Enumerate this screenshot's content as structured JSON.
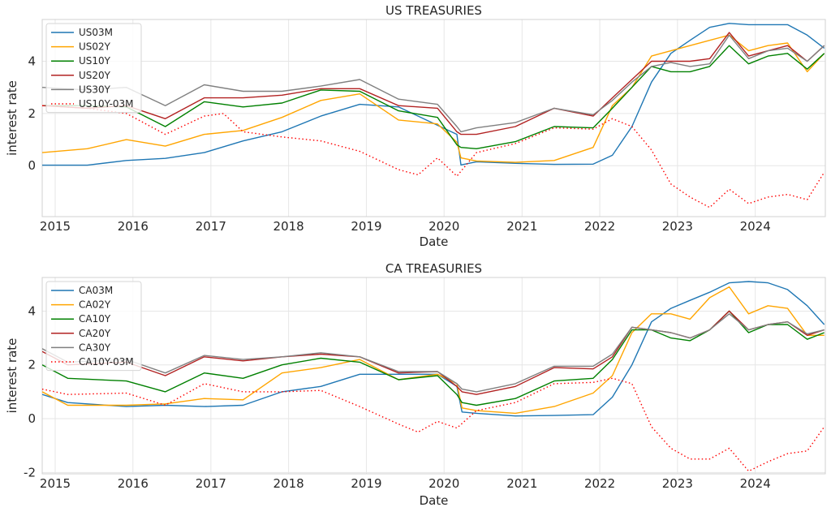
{
  "chart_data": [
    {
      "type": "line",
      "title": "US TREASURIES",
      "xlabel": "Date",
      "ylabel": "interest rate",
      "xlim": [
        "2014-11-01",
        "2024-11-25"
      ],
      "ylim": [
        -1.95,
        5.6
      ],
      "x_ticks": [
        "2015",
        "2016",
        "2017",
        "2018",
        "2019",
        "2020",
        "2021",
        "2022",
        "2023",
        "2024"
      ],
      "y_ticks": [
        0,
        2,
        4
      ],
      "grid": true,
      "legend_position": "top-left",
      "series": [
        {
          "name": "US03M",
          "color": "#1f77b4",
          "style": "solid",
          "x": [
            "2014-11-01",
            "2015-06-01",
            "2015-12-01",
            "2016-06-01",
            "2016-12-01",
            "2017-06-01",
            "2017-12-01",
            "2018-06-01",
            "2018-12-01",
            "2019-06-01",
            "2019-12-01",
            "2020-03-01",
            "2020-03-20",
            "2020-06-01",
            "2020-12-01",
            "2021-06-01",
            "2021-12-01",
            "2022-03-01",
            "2022-06-01",
            "2022-09-01",
            "2022-12-01",
            "2023-03-01",
            "2023-06-01",
            "2023-09-01",
            "2023-12-01",
            "2024-03-01",
            "2024-06-01",
            "2024-09-01",
            "2024-11-20"
          ],
          "y": [
            0.02,
            0.02,
            0.2,
            0.28,
            0.5,
            0.95,
            1.3,
            1.9,
            2.35,
            2.25,
            1.55,
            1.2,
            0.03,
            0.15,
            0.09,
            0.05,
            0.06,
            0.4,
            1.5,
            3.2,
            4.3,
            4.8,
            5.3,
            5.45,
            5.4,
            5.4,
            5.4,
            5.0,
            4.5
          ]
        },
        {
          "name": "US02Y",
          "color": "#ffa500",
          "style": "solid",
          "x": [
            "2014-11-01",
            "2015-06-01",
            "2015-12-01",
            "2016-06-01",
            "2016-12-01",
            "2017-06-01",
            "2017-12-01",
            "2018-06-01",
            "2018-12-01",
            "2019-06-01",
            "2019-12-01",
            "2020-03-01",
            "2020-03-20",
            "2020-06-01",
            "2020-12-01",
            "2021-06-01",
            "2021-12-01",
            "2022-03-01",
            "2022-06-01",
            "2022-09-01",
            "2022-12-01",
            "2023-03-01",
            "2023-06-01",
            "2023-09-01",
            "2023-12-01",
            "2024-03-01",
            "2024-06-01",
            "2024-09-01",
            "2024-11-20"
          ],
          "y": [
            0.5,
            0.65,
            1.0,
            0.75,
            1.2,
            1.35,
            1.85,
            2.5,
            2.75,
            1.75,
            1.6,
            0.9,
            0.3,
            0.18,
            0.13,
            0.2,
            0.7,
            2.3,
            3.0,
            4.2,
            4.4,
            4.6,
            4.8,
            5.0,
            4.4,
            4.6,
            4.7,
            3.6,
            4.3
          ]
        },
        {
          "name": "US10Y",
          "color": "#008000",
          "style": "solid",
          "x": [
            "2014-11-01",
            "2015-06-01",
            "2015-12-01",
            "2016-06-01",
            "2016-12-01",
            "2017-06-01",
            "2017-12-01",
            "2018-06-01",
            "2018-12-01",
            "2019-06-01",
            "2019-12-01",
            "2020-03-01",
            "2020-03-20",
            "2020-06-01",
            "2020-12-01",
            "2021-06-01",
            "2021-12-01",
            "2022-03-01",
            "2022-06-01",
            "2022-09-01",
            "2022-12-01",
            "2023-03-01",
            "2023-06-01",
            "2023-09-01",
            "2023-12-01",
            "2024-03-01",
            "2024-06-01",
            "2024-09-01",
            "2024-11-20"
          ],
          "y": [
            2.3,
            2.3,
            2.25,
            1.5,
            2.45,
            2.25,
            2.4,
            2.9,
            2.85,
            2.1,
            1.85,
            0.8,
            0.7,
            0.65,
            0.92,
            1.5,
            1.45,
            2.2,
            3.0,
            3.8,
            3.6,
            3.6,
            3.8,
            4.6,
            3.9,
            4.2,
            4.3,
            3.7,
            4.3
          ]
        },
        {
          "name": "US20Y",
          "color": "#b22222",
          "style": "solid",
          "x": [
            "2014-11-01",
            "2015-06-01",
            "2015-12-01",
            "2016-06-01",
            "2016-12-01",
            "2017-06-01",
            "2017-12-01",
            "2018-06-01",
            "2018-12-01",
            "2019-06-01",
            "2019-12-01",
            "2020-03-01",
            "2020-03-20",
            "2020-06-01",
            "2020-12-01",
            "2021-06-01",
            "2021-12-01",
            "2022-03-01",
            "2022-06-01",
            "2022-09-01",
            "2022-12-01",
            "2023-03-01",
            "2023-06-01",
            "2023-09-01",
            "2023-12-01",
            "2024-03-01",
            "2024-06-01",
            "2024-09-01",
            "2024-11-20"
          ],
          "y": [
            2.3,
            2.2,
            2.3,
            1.8,
            2.6,
            2.6,
            2.7,
            2.95,
            2.95,
            2.3,
            2.2,
            1.3,
            1.2,
            1.2,
            1.5,
            2.2,
            1.9,
            2.6,
            3.3,
            4.0,
            4.0,
            4.0,
            4.1,
            5.1,
            4.2,
            4.4,
            4.6,
            4.0,
            4.6
          ]
        },
        {
          "name": "US30Y",
          "color": "#808080",
          "style": "solid",
          "x": [
            "2014-11-01",
            "2015-06-01",
            "2015-12-01",
            "2016-06-01",
            "2016-12-01",
            "2017-06-01",
            "2017-12-01",
            "2018-06-01",
            "2018-12-01",
            "2019-06-01",
            "2019-12-01",
            "2020-03-01",
            "2020-03-20",
            "2020-06-01",
            "2020-12-01",
            "2021-06-01",
            "2021-12-01",
            "2022-03-01",
            "2022-06-01",
            "2022-09-01",
            "2022-12-01",
            "2023-03-01",
            "2023-06-01",
            "2023-09-01",
            "2023-12-01",
            "2024-03-01",
            "2024-06-01",
            "2024-09-01",
            "2024-11-20"
          ],
          "y": [
            3.0,
            2.9,
            3.0,
            2.3,
            3.1,
            2.85,
            2.85,
            3.05,
            3.3,
            2.55,
            2.35,
            1.5,
            1.3,
            1.45,
            1.65,
            2.2,
            1.95,
            2.5,
            3.2,
            3.8,
            3.95,
            3.8,
            3.9,
            5.0,
            4.1,
            4.4,
            4.5,
            4.0,
            4.6
          ]
        },
        {
          "name": "US10Y-03M",
          "color": "#ff0000",
          "style": "dotted",
          "x": [
            "2014-11-01",
            "2015-06-01",
            "2015-12-01",
            "2016-06-01",
            "2016-12-01",
            "2017-03-01",
            "2017-06-01",
            "2017-12-01",
            "2018-06-01",
            "2018-12-01",
            "2019-06-01",
            "2019-09-01",
            "2019-12-01",
            "2020-03-01",
            "2020-06-01",
            "2020-12-01",
            "2021-06-01",
            "2021-12-01",
            "2022-03-01",
            "2022-06-01",
            "2022-09-01",
            "2022-12-01",
            "2023-03-01",
            "2023-06-01",
            "2023-09-01",
            "2023-12-01",
            "2024-03-01",
            "2024-06-01",
            "2024-09-01",
            "2024-11-20"
          ],
          "y": [
            2.3,
            2.2,
            2.0,
            1.2,
            1.9,
            2.0,
            1.3,
            1.1,
            0.95,
            0.55,
            -0.15,
            -0.35,
            0.3,
            -0.4,
            0.5,
            0.85,
            1.45,
            1.4,
            1.8,
            1.5,
            0.6,
            -0.7,
            -1.2,
            -1.6,
            -0.9,
            -1.45,
            -1.2,
            -1.1,
            -1.3,
            -0.25
          ]
        }
      ]
    },
    {
      "type": "line",
      "title": "CA TREASURIES",
      "xlabel": "Date",
      "ylabel": "interest rate",
      "xlim": [
        "2014-11-01",
        "2024-11-25"
      ],
      "ylim": [
        -2.05,
        5.25
      ],
      "x_ticks": [
        "2015",
        "2016",
        "2017",
        "2018",
        "2019",
        "2020",
        "2021",
        "2022",
        "2023",
        "2024"
      ],
      "y_ticks": [
        -2,
        0,
        2,
        4
      ],
      "grid": true,
      "legend_position": "top-left",
      "series": [
        {
          "name": "CA03M",
          "color": "#1f77b4",
          "style": "solid",
          "x": [
            "2014-11-01",
            "2015-03-01",
            "2015-12-01",
            "2016-06-01",
            "2016-12-01",
            "2017-06-01",
            "2017-12-01",
            "2018-06-01",
            "2018-12-01",
            "2019-06-01",
            "2019-12-01",
            "2020-03-01",
            "2020-03-25",
            "2020-06-01",
            "2020-12-01",
            "2021-06-01",
            "2021-12-01",
            "2022-03-01",
            "2022-06-01",
            "2022-09-01",
            "2022-12-01",
            "2023-03-01",
            "2023-06-01",
            "2023-09-01",
            "2023-12-01",
            "2024-03-01",
            "2024-06-01",
            "2024-09-01",
            "2024-11-20"
          ],
          "y": [
            0.9,
            0.6,
            0.45,
            0.5,
            0.45,
            0.5,
            1.0,
            1.2,
            1.65,
            1.65,
            1.65,
            1.2,
            0.25,
            0.2,
            0.1,
            0.12,
            0.15,
            0.8,
            2.0,
            3.6,
            4.1,
            4.4,
            4.7,
            5.05,
            5.1,
            5.05,
            4.8,
            4.2,
            3.5
          ]
        },
        {
          "name": "CA02Y",
          "color": "#ffa500",
          "style": "solid",
          "x": [
            "2014-11-01",
            "2015-03-01",
            "2015-12-01",
            "2016-06-01",
            "2016-12-01",
            "2017-06-01",
            "2017-12-01",
            "2018-06-01",
            "2018-12-01",
            "2019-06-01",
            "2019-12-01",
            "2020-03-01",
            "2020-03-25",
            "2020-06-01",
            "2020-12-01",
            "2021-06-01",
            "2021-12-01",
            "2022-03-01",
            "2022-06-01",
            "2022-09-01",
            "2022-12-01",
            "2023-03-01",
            "2023-06-01",
            "2023-09-01",
            "2023-12-01",
            "2024-03-01",
            "2024-06-01",
            "2024-09-01",
            "2024-11-20"
          ],
          "y": [
            1.0,
            0.5,
            0.5,
            0.55,
            0.75,
            0.7,
            1.7,
            1.9,
            2.2,
            1.45,
            1.65,
            1.3,
            0.4,
            0.3,
            0.2,
            0.45,
            0.95,
            1.6,
            3.2,
            3.9,
            3.9,
            3.7,
            4.5,
            4.9,
            3.9,
            4.2,
            4.1,
            3.1,
            3.1
          ]
        },
        {
          "name": "CA10Y",
          "color": "#008000",
          "style": "solid",
          "x": [
            "2014-11-01",
            "2015-03-01",
            "2015-12-01",
            "2016-06-01",
            "2016-12-01",
            "2017-06-01",
            "2017-12-01",
            "2018-06-01",
            "2018-12-01",
            "2019-06-01",
            "2019-12-01",
            "2020-03-01",
            "2020-03-25",
            "2020-06-01",
            "2020-12-01",
            "2021-06-01",
            "2021-12-01",
            "2022-03-01",
            "2022-06-01",
            "2022-09-01",
            "2022-12-01",
            "2023-03-01",
            "2023-06-01",
            "2023-09-01",
            "2023-12-01",
            "2024-03-01",
            "2024-06-01",
            "2024-09-01",
            "2024-11-20"
          ],
          "y": [
            2.0,
            1.5,
            1.4,
            1.0,
            1.7,
            1.5,
            2.0,
            2.25,
            2.1,
            1.45,
            1.6,
            0.9,
            0.6,
            0.5,
            0.75,
            1.4,
            1.5,
            2.2,
            3.3,
            3.3,
            3.0,
            2.9,
            3.3,
            4.0,
            3.2,
            3.5,
            3.5,
            2.95,
            3.2
          ]
        },
        {
          "name": "CA20Y",
          "color": "#b22222",
          "style": "solid",
          "x": [
            "2014-11-01",
            "2015-03-01",
            "2015-12-01",
            "2016-06-01",
            "2016-12-01",
            "2017-06-01",
            "2017-12-01",
            "2018-06-01",
            "2018-12-01",
            "2019-06-01",
            "2019-12-01",
            "2020-03-01",
            "2020-03-25",
            "2020-06-01",
            "2020-12-01",
            "2021-06-01",
            "2021-12-01",
            "2022-03-01",
            "2022-06-01",
            "2022-09-01",
            "2022-12-01",
            "2023-03-01",
            "2023-06-01",
            "2023-09-01",
            "2023-12-01",
            "2024-03-01",
            "2024-06-01",
            "2024-09-01",
            "2024-11-20"
          ],
          "y": [
            2.5,
            2.0,
            2.1,
            1.6,
            2.3,
            2.15,
            2.3,
            2.4,
            2.3,
            1.7,
            1.75,
            1.2,
            1.0,
            0.9,
            1.2,
            1.9,
            1.85,
            2.3,
            3.4,
            3.3,
            3.2,
            3.0,
            3.3,
            4.0,
            3.3,
            3.5,
            3.6,
            3.1,
            3.3
          ]
        },
        {
          "name": "CA30Y",
          "color": "#808080",
          "style": "solid",
          "x": [
            "2014-11-01",
            "2015-03-01",
            "2015-12-01",
            "2016-06-01",
            "2016-12-01",
            "2017-06-01",
            "2017-12-01",
            "2018-06-01",
            "2018-12-01",
            "2019-06-01",
            "2019-12-01",
            "2020-03-01",
            "2020-03-25",
            "2020-06-01",
            "2020-12-01",
            "2021-06-01",
            "2021-12-01",
            "2022-03-01",
            "2022-06-01",
            "2022-09-01",
            "2022-12-01",
            "2023-03-01",
            "2023-06-01",
            "2023-09-01",
            "2023-12-01",
            "2024-03-01",
            "2024-06-01",
            "2024-09-01",
            "2024-11-20"
          ],
          "y": [
            2.6,
            2.1,
            2.2,
            1.7,
            2.35,
            2.2,
            2.3,
            2.45,
            2.3,
            1.75,
            1.75,
            1.3,
            1.1,
            1.0,
            1.3,
            1.95,
            1.95,
            2.4,
            3.4,
            3.3,
            3.2,
            3.0,
            3.3,
            3.9,
            3.3,
            3.5,
            3.6,
            3.15,
            3.3
          ]
        },
        {
          "name": "CA10Y-03M",
          "color": "#ff0000",
          "style": "dotted",
          "x": [
            "2014-11-01",
            "2015-03-01",
            "2015-12-01",
            "2016-06-01",
            "2016-12-01",
            "2017-06-01",
            "2017-12-01",
            "2018-06-01",
            "2018-12-01",
            "2019-06-01",
            "2019-09-01",
            "2019-12-01",
            "2020-03-01",
            "2020-06-01",
            "2020-12-01",
            "2021-06-01",
            "2021-12-01",
            "2022-03-01",
            "2022-06-01",
            "2022-09-01",
            "2022-12-01",
            "2023-03-01",
            "2023-06-01",
            "2023-09-01",
            "2023-12-01",
            "2024-03-01",
            "2024-06-01",
            "2024-09-01",
            "2024-11-20"
          ],
          "y": [
            1.1,
            0.9,
            0.95,
            0.5,
            1.3,
            1.0,
            1.0,
            1.05,
            0.45,
            -0.2,
            -0.5,
            -0.1,
            -0.35,
            0.3,
            0.6,
            1.3,
            1.35,
            1.5,
            1.3,
            -0.3,
            -1.1,
            -1.5,
            -1.5,
            -1.1,
            -1.95,
            -1.6,
            -1.3,
            -1.2,
            -0.3
          ]
        }
      ]
    }
  ]
}
